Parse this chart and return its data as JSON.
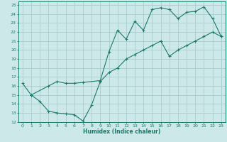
{
  "xlabel": "Humidex (Indice chaleur)",
  "bg_color": "#cde8e8",
  "grid_color": "#a8cccc",
  "line_color": "#1a7a6a",
  "xlim": [
    -0.5,
    23.5
  ],
  "ylim": [
    12,
    25.4
  ],
  "yticks": [
    12,
    13,
    14,
    15,
    16,
    17,
    18,
    19,
    20,
    21,
    22,
    23,
    24,
    25
  ],
  "xticks": [
    0,
    1,
    2,
    3,
    4,
    5,
    6,
    7,
    8,
    9,
    10,
    11,
    12,
    13,
    14,
    15,
    16,
    17,
    18,
    19,
    20,
    21,
    22,
    23
  ],
  "line1_x": [
    0,
    1,
    3,
    4,
    5,
    6,
    7,
    9,
    10,
    11,
    12,
    13,
    14,
    15,
    16,
    17,
    18,
    19,
    20,
    21,
    22,
    23
  ],
  "line1_y": [
    16.3,
    15.0,
    16.0,
    16.5,
    16.3,
    16.3,
    16.4,
    16.6,
    19.8,
    22.2,
    21.2,
    23.2,
    22.2,
    24.5,
    24.7,
    24.5,
    23.5,
    24.2,
    24.3,
    24.8,
    23.5,
    21.5
  ],
  "line2_x": [
    1,
    2,
    3,
    4,
    5,
    6,
    7,
    8,
    9,
    10,
    11,
    12,
    13,
    14,
    15,
    16,
    17,
    18,
    19,
    20,
    21,
    22,
    23
  ],
  "line2_y": [
    15.0,
    14.3,
    13.2,
    13.0,
    12.9,
    12.8,
    12.1,
    13.9,
    16.5,
    17.5,
    18.0,
    19.0,
    19.5,
    20.0,
    20.5,
    21.0,
    19.3,
    20.0,
    20.5,
    21.0,
    21.5,
    22.0,
    21.5
  ]
}
